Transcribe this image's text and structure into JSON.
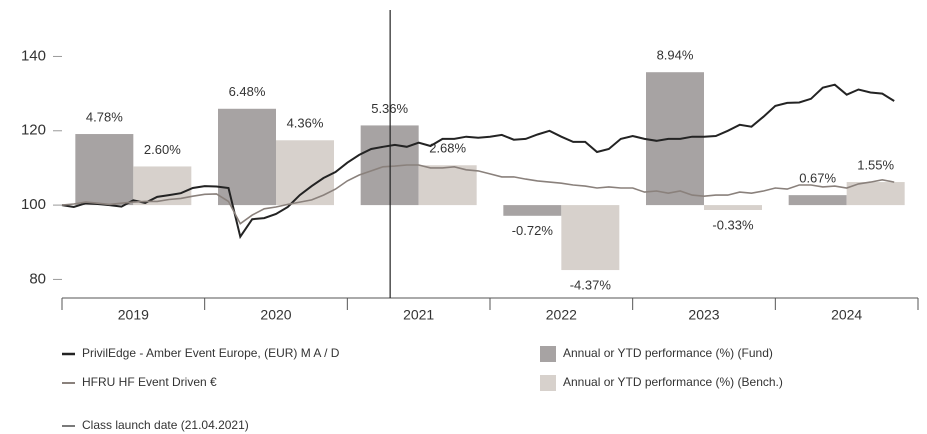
{
  "chart_data": {
    "type": "combo",
    "categories": [
      "2019",
      "2020",
      "2021",
      "2022",
      "2023",
      "2024"
    ],
    "xlim": [
      2019,
      2025
    ],
    "ylim": [
      75,
      152.5
    ],
    "yticks": [
      80,
      100,
      120,
      140
    ],
    "y2lim": [
      -6.25,
      13.125
    ],
    "x": [
      2019,
      2019.083,
      2019.167,
      2019.25,
      2019.333,
      2019.417,
      2019.5,
      2019.583,
      2019.667,
      2019.75,
      2019.833,
      2019.917,
      2020,
      2020.083,
      2020.167,
      2020.25,
      2020.333,
      2020.417,
      2020.5,
      2020.583,
      2020.667,
      2020.75,
      2020.833,
      2020.917,
      2021,
      2021.083,
      2021.167,
      2021.25,
      2021.333,
      2021.417,
      2021.5,
      2021.583,
      2021.667,
      2021.75,
      2021.833,
      2021.917,
      2022,
      2022.083,
      2022.167,
      2022.25,
      2022.333,
      2022.417,
      2022.5,
      2022.583,
      2022.667,
      2022.75,
      2022.833,
      2022.917,
      2023,
      2023.083,
      2023.167,
      2023.25,
      2023.333,
      2023.417,
      2023.5,
      2023.583,
      2023.667,
      2023.75,
      2023.833,
      2023.917,
      2024,
      2024.083,
      2024.167,
      2024.25,
      2024.333,
      2024.417,
      2024.5,
      2024.583,
      2024.667,
      2024.75,
      2024.833
    ],
    "series": [
      {
        "name": "PrivilEdge - Amber Event Europe, (EUR) M A / D",
        "type": "line",
        "color": "#232323",
        "values": [
          100,
          99.5,
          100.5,
          100.3,
          100.0,
          99.6,
          101.3,
          100.6,
          102.2,
          102.7,
          103.2,
          104.6,
          105.1,
          105.0,
          104.6,
          91.5,
          96.2,
          96.5,
          97.6,
          99.5,
          102.7,
          105.1,
          107.3,
          108.9,
          111.4,
          113.5,
          115.1,
          115.7,
          116.2,
          115.7,
          116.8,
          115.9,
          117.8,
          117.8,
          118.4,
          118.1,
          118.4,
          118.9,
          117.6,
          117.8,
          119.0,
          120.0,
          118.4,
          117.0,
          117.0,
          114.3,
          115.1,
          117.8,
          118.6,
          117.8,
          117.3,
          117.8,
          117.8,
          118.4,
          118.4,
          118.6,
          120.0,
          121.6,
          121.1,
          123.8,
          126.7,
          127.5,
          127.6,
          128.6,
          131.6,
          132.4,
          129.7,
          131.1,
          130.3,
          130.0,
          128.0
        ]
      },
      {
        "name": "HFRU HF Event Driven €",
        "type": "line",
        "color": "#8a817c",
        "values": [
          100,
          100.3,
          100.8,
          100.5,
          100.2,
          100.5,
          100.8,
          101.0,
          101.0,
          101.5,
          101.8,
          102.4,
          102.9,
          103.0,
          101.0,
          95.0,
          97.3,
          99.0,
          99.5,
          100.2,
          100.8,
          101.4,
          102.7,
          104.3,
          106.5,
          108.1,
          109.2,
          110.3,
          110.5,
          110.8,
          110.8,
          110.0,
          110.0,
          110.3,
          109.5,
          109.2,
          108.4,
          107.6,
          107.6,
          107.0,
          106.5,
          106.2,
          105.9,
          105.4,
          105.1,
          104.6,
          104.9,
          104.6,
          104.6,
          103.5,
          103.8,
          103.2,
          103.8,
          102.7,
          102.4,
          102.7,
          102.7,
          103.5,
          103.2,
          103.8,
          104.6,
          104.3,
          105.4,
          105.4,
          104.9,
          105.1,
          104.6,
          105.7,
          106.2,
          106.8,
          106.2
        ]
      },
      {
        "name": "Annual or YTD performance (%) (Fund)",
        "type": "bar",
        "axis": "y2",
        "color": "#a7a3a3",
        "values": [
          4.78,
          6.48,
          5.36,
          -0.72,
          8.94,
          0.67
        ],
        "value_labels": [
          "4.78%",
          "6.48%",
          "5.36%",
          "-0.72%",
          "8.94%",
          "0.67%"
        ]
      },
      {
        "name": "Annual or YTD performance (%) (Bench.)",
        "type": "bar",
        "axis": "y2",
        "color": "#d7d1cc",
        "values": [
          2.6,
          4.36,
          2.68,
          -4.37,
          -0.33,
          1.55
        ],
        "value_labels": [
          "2.60%",
          "4.36%",
          "2.68%",
          "-4.37%",
          "-0.33%",
          "1.55%"
        ]
      }
    ],
    "marker_line": {
      "name": "Class launch date (21.04.2021)",
      "x": 2021.3,
      "color": "#222222"
    }
  }
}
